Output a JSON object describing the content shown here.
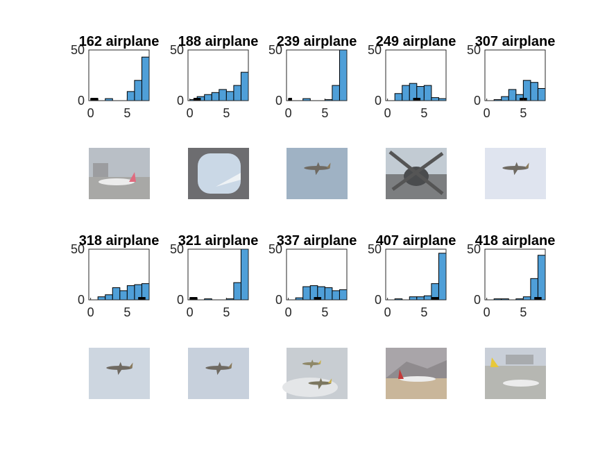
{
  "chart_data": [
    {
      "type": "bar",
      "title": "162 airplane",
      "ylim": [
        0,
        50
      ],
      "xticks": [
        "0",
        "5"
      ],
      "yticks": [
        "0",
        "50"
      ],
      "values": [
        2,
        0,
        2,
        0,
        0,
        9,
        20,
        43
      ],
      "marker_range": [
        0,
        1
      ]
    },
    {
      "type": "bar",
      "title": "188 airplane",
      "ylim": [
        0,
        50
      ],
      "xticks": [
        "0",
        "5"
      ],
      "yticks": [
        "0",
        "50"
      ],
      "values": [
        1,
        4,
        6,
        8,
        11,
        9,
        15,
        28
      ],
      "marker_range": [
        0.5,
        1.5
      ]
    },
    {
      "type": "bar",
      "title": "239 airplane",
      "ylim": [
        0,
        50
      ],
      "xticks": [
        "0",
        "5"
      ],
      "yticks": [
        "0",
        "50"
      ],
      "values": [
        0,
        0,
        2,
        0,
        0,
        1,
        15,
        50
      ],
      "marker_range": [
        0,
        0.5
      ]
    },
    {
      "type": "bar",
      "title": "249 airplane",
      "ylim": [
        0,
        50
      ],
      "xticks": [
        "0",
        "5"
      ],
      "yticks": [
        "0",
        "50"
      ],
      "values": [
        0,
        7,
        15,
        17,
        14,
        15,
        3,
        2
      ],
      "marker_range": [
        3.5,
        4.5
      ]
    },
    {
      "type": "bar",
      "title": "307 airplane",
      "ylim": [
        0,
        50
      ],
      "xticks": [
        "0",
        "5"
      ],
      "yticks": [
        "0",
        "50"
      ],
      "values": [
        0,
        1,
        4,
        11,
        6,
        20,
        18,
        12
      ],
      "marker_range": [
        4.5,
        5.5
      ]
    },
    {
      "type": "bar",
      "title": "318 airplane",
      "ylim": [
        0,
        50
      ],
      "xticks": [
        "0",
        "5"
      ],
      "yticks": [
        "0",
        "50"
      ],
      "values": [
        0,
        3,
        5,
        12,
        9,
        14,
        15,
        16
      ],
      "marker_range": [
        6.5,
        7.5
      ]
    },
    {
      "type": "bar",
      "title": "321 airplane",
      "ylim": [
        0,
        50
      ],
      "xticks": [
        "0",
        "5"
      ],
      "yticks": [
        "0",
        "50"
      ],
      "values": [
        2,
        0,
        1,
        0,
        0,
        1,
        17,
        50
      ],
      "marker_range": [
        0,
        1
      ]
    },
    {
      "type": "bar",
      "title": "337 airplane",
      "ylim": [
        0,
        50
      ],
      "xticks": [
        "0",
        "5"
      ],
      "yticks": [
        "0",
        "50"
      ],
      "values": [
        0,
        2,
        13,
        14,
        13,
        12,
        9,
        10
      ],
      "marker_range": [
        3.5,
        4.5
      ]
    },
    {
      "type": "bar",
      "title": "407 airplane",
      "ylim": [
        0,
        50
      ],
      "xticks": [
        "0",
        "5"
      ],
      "yticks": [
        "0",
        "50"
      ],
      "values": [
        0,
        1,
        0,
        3,
        3,
        4,
        16,
        46
      ],
      "marker_range": [
        6,
        7
      ]
    },
    {
      "type": "bar",
      "title": "418 airplane",
      "ylim": [
        0,
        50
      ],
      "xticks": [
        "0",
        "5"
      ],
      "yticks": [
        "0",
        "50"
      ],
      "values": [
        0,
        1,
        1,
        0,
        1,
        3,
        21,
        44
      ],
      "marker_range": [
        6.5,
        7.5
      ]
    }
  ],
  "thumbnails": [
    {
      "scene": "airplane-on-tarmac",
      "sky": "#b9bfc6",
      "ground": "#a8a8a6"
    },
    {
      "scene": "airplane-window-view",
      "sky": "#bfcedc",
      "ground": "#6d6d70"
    },
    {
      "scene": "airplane-in-sky",
      "sky": "#9fb2c4",
      "ground": "#9fb2c4"
    },
    {
      "scene": "propeller-closeup",
      "sky": "#c2cbd3",
      "ground": "#7c7e80"
    },
    {
      "scene": "airplane-in-sky",
      "sky": "#dfe4ef",
      "ground": "#dfe4ef"
    },
    {
      "scene": "airplane-in-sky",
      "sky": "#cdd6e0",
      "ground": "#cdd6e0"
    },
    {
      "scene": "airplane-in-sky",
      "sky": "#c7d0dc",
      "ground": "#c7d0dc"
    },
    {
      "scene": "airplanes-in-clouds",
      "sky": "#c8cdd2",
      "ground": "#d9dcde"
    },
    {
      "scene": "airplane-on-runway",
      "sky": "#a9a5a9",
      "ground": "#c9b69a"
    },
    {
      "scene": "airport-apron",
      "sky": "#c9cfd8",
      "ground": "#b6b7b2"
    }
  ]
}
